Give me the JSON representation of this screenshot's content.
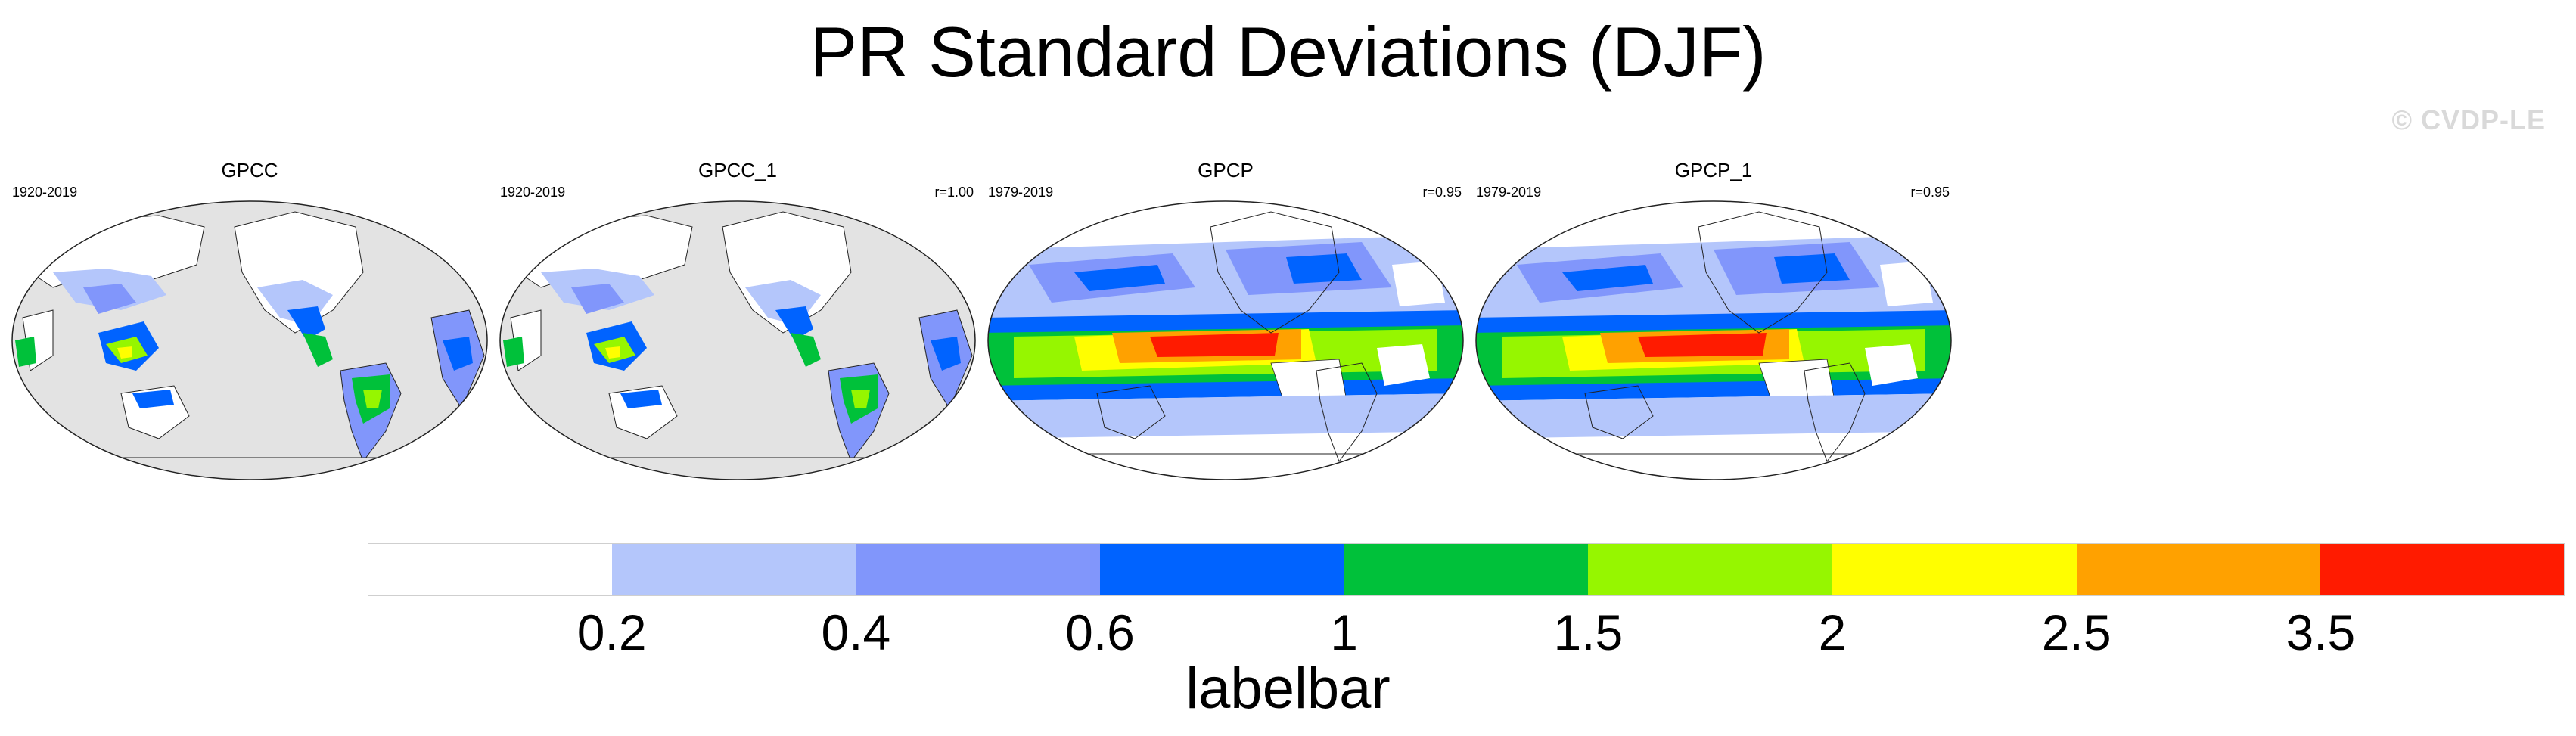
{
  "title": "PR Standard Deviations (DJF)",
  "watermark": "© CVDP-LE",
  "panels": [
    {
      "name": "GPCC",
      "period": "1920-2019",
      "r": ""
    },
    {
      "name": "GPCC_1",
      "period": "1920-2019",
      "r": "r=1.00"
    },
    {
      "name": "GPCP",
      "period": "1979-2019",
      "r": "r=0.95"
    },
    {
      "name": "GPCP_1",
      "period": "1979-2019",
      "r": "r=0.95"
    }
  ],
  "colorbar": {
    "colors": [
      "#ffffff",
      "#b4c6fb",
      "#8196fb",
      "#0063ff",
      "#00c13a",
      "#96f600",
      "#fffe00",
      "#ffa100",
      "#ff1b00"
    ],
    "ticks": [
      "0.2",
      "0.4",
      "0.6",
      "1",
      "1.5",
      "2",
      "2.5",
      "3.5"
    ],
    "title": "labelbar"
  },
  "map_colors": {
    "missing": "#e3e3e3",
    "coast": "#1a1a1a"
  }
}
